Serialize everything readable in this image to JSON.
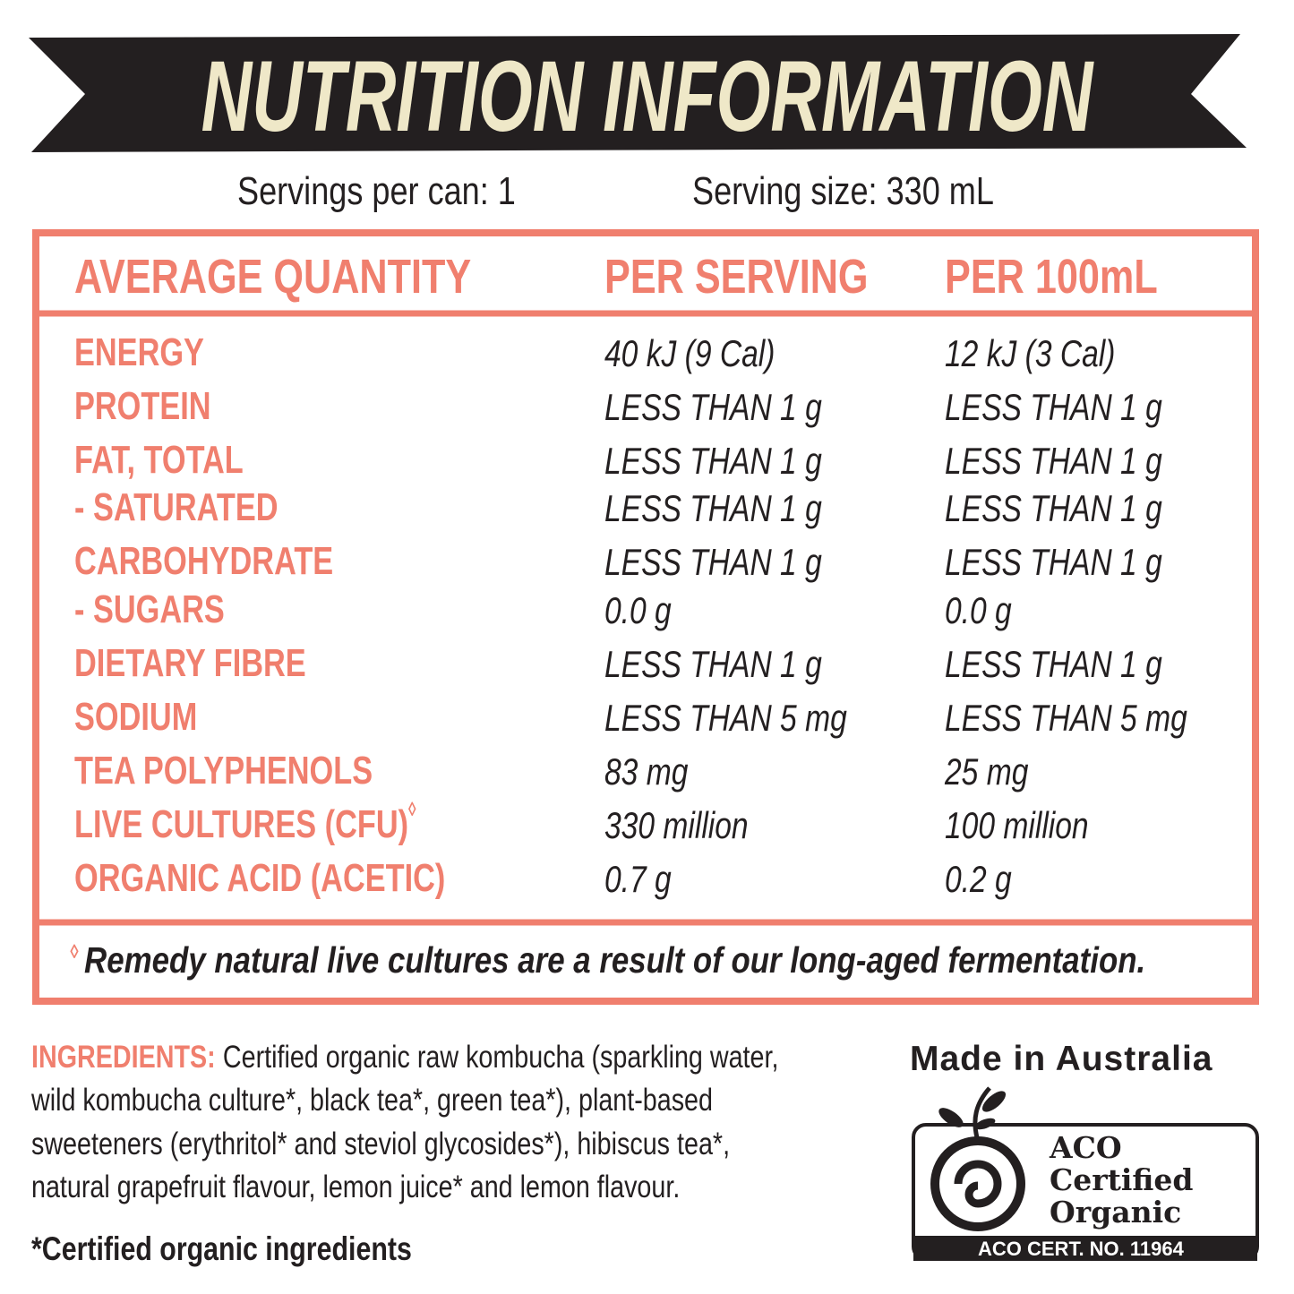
{
  "header": {
    "title": "NUTRITION INFORMATION",
    "servings_per_can": "Servings per can: 1",
    "serving_size": "Serving size: 330 mL"
  },
  "table": {
    "columns": [
      "AVERAGE QUANTITY",
      "PER SERVING",
      "PER 100mL"
    ],
    "rows": [
      [
        "ENERGY",
        "40 kJ (9 Cal)",
        "12 kJ (3 Cal)"
      ],
      [
        "PROTEIN",
        "LESS THAN 1 g",
        "LESS THAN 1 g"
      ],
      [
        "FAT, TOTAL",
        "LESS THAN 1 g",
        "LESS THAN 1 g"
      ],
      [
        "- SATURATED",
        "LESS THAN 1 g",
        "LESS THAN 1 g"
      ],
      [
        "CARBOHYDRATE",
        "LESS THAN 1 g",
        "LESS THAN 1 g"
      ],
      [
        "- SUGARS",
        "0.0 g",
        "0.0 g"
      ],
      [
        "DIETARY FIBRE",
        "LESS THAN 1 g",
        "LESS THAN 1 g"
      ],
      [
        "SODIUM",
        "LESS THAN 5 mg",
        "LESS THAN 5 mg"
      ],
      [
        "TEA POLYPHENOLS",
        "83 mg",
        "25 mg"
      ],
      [
        "LIVE CULTURES (CFU)",
        "330 million",
        "100 million"
      ],
      [
        "ORGANIC ACID (ACETIC)",
        "0.7 g",
        "0.2 g"
      ]
    ],
    "row_marker": "◊",
    "footnote_mark": "◊",
    "footnote": "Remedy natural live cultures are a result of our long-aged fermentation."
  },
  "ingredients": {
    "label": "INGREDIENTS:",
    "lines": [
      "Certified organic raw kombucha (sparkling water,",
      "wild kombucha culture*, black tea*, green tea*), plant-based",
      "sweeteners (erythritol* and steviol glycosides*), hibiscus tea*,",
      "natural grapefruit flavour, lemon juice* and lemon flavour."
    ],
    "note": "*Certified organic ingredients"
  },
  "badge": {
    "made_in": "Made in Australia",
    "cert_lines": [
      "ACO",
      "Certified",
      "Organic"
    ],
    "cert_no": "ACO CERT. NO. 11964"
  }
}
